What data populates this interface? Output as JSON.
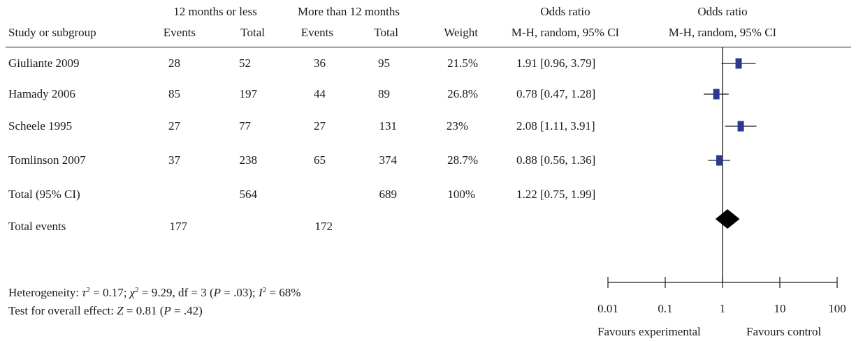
{
  "header": {
    "group_exp": "12 months or less",
    "group_ctrl": "More than 12 months",
    "study_col": "Study or subgroup",
    "events": "Events",
    "total": "Total",
    "weight": "Weight",
    "or_title": "Odds ratio",
    "or_method": "M-H, random, 95% CI",
    "plot_title": "Odds ratio",
    "plot_method": "M-H, random, 95% CI"
  },
  "rows": [
    {
      "study": "Giuliante 2009",
      "exp_events": "28",
      "exp_total": "52",
      "ctrl_events": "36",
      "ctrl_total": "95",
      "weight": "21.5%",
      "ci_text": "1.91 [0.96, 3.79]"
    },
    {
      "study": "Hamady 2006",
      "exp_events": "85",
      "exp_total": "197",
      "ctrl_events": "44",
      "ctrl_total": "89",
      "weight": "26.8%",
      "ci_text": "0.78 [0.47, 1.28]"
    },
    {
      "study": "Scheele 1995",
      "exp_events": "27",
      "exp_total": "77",
      "ctrl_events": "27",
      "ctrl_total": "131",
      "weight": "23%",
      "ci_text": "2.08 [1.11, 3.91]"
    },
    {
      "study": "Tomlinson 2007",
      "exp_events": "37",
      "exp_total": "238",
      "ctrl_events": "65",
      "ctrl_total": "374",
      "weight": "28.7%",
      "ci_text": "0.88 [0.56, 1.36]"
    }
  ],
  "total_row": {
    "label": "Total (95% CI)",
    "exp_total": "564",
    "ctrl_total": "689",
    "weight": "100%",
    "ci_text": "1.22 [0.75, 1.99]"
  },
  "events_row": {
    "label": "Total events",
    "exp_events": "177",
    "ctrl_events": "172"
  },
  "footer": {
    "heterogeneity": "Heterogeneity: τ² = 0.17; χ² = 9.29, df = 3 (P = .03); I² = 68%",
    "overall": "Test for overall effect: Z = 0.81 (P = .42)"
  },
  "axis": {
    "ticks": [
      "0.01",
      "0.1",
      "1",
      "10",
      "100"
    ],
    "favours_left": "Favours experimental",
    "favours_right": "Favours control"
  },
  "colors": {
    "marker": "#2b3990",
    "diamond": "#000000",
    "text": "#1a1a1a"
  },
  "chart_data": {
    "type": "forest",
    "scale": "log",
    "xlim": [
      0.01,
      100
    ],
    "reference_line": 1,
    "studies": [
      {
        "name": "Giuliante 2009",
        "or": 1.91,
        "ci": [
          0.96,
          3.79
        ],
        "weight": 21.5
      },
      {
        "name": "Hamady 2006",
        "or": 0.78,
        "ci": [
          0.47,
          1.28
        ],
        "weight": 26.8
      },
      {
        "name": "Scheele 1995",
        "or": 2.08,
        "ci": [
          1.11,
          3.91
        ],
        "weight": 23
      },
      {
        "name": "Tomlinson 2007",
        "or": 0.88,
        "ci": [
          0.56,
          1.36
        ],
        "weight": 28.7
      }
    ],
    "pooled": {
      "name": "Total (95% CI)",
      "or": 1.22,
      "ci": [
        0.75,
        1.99
      ]
    }
  }
}
